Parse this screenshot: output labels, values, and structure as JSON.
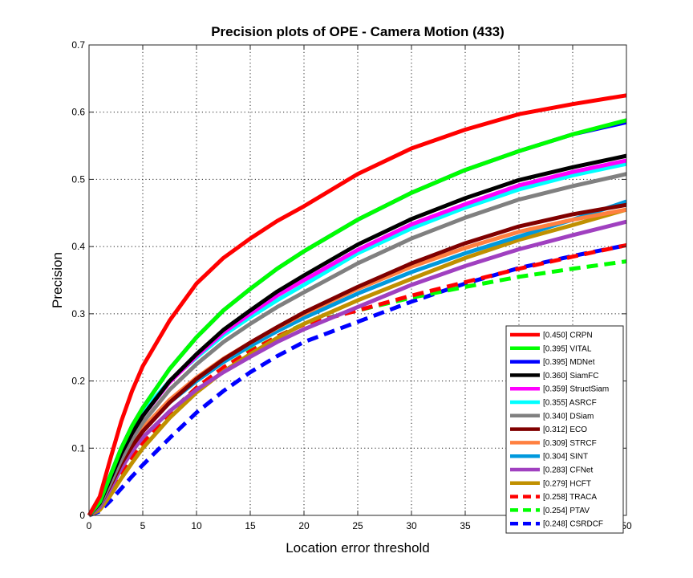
{
  "chart_data": {
    "type": "line",
    "title": "Precision plots of OPE - Camera Motion (433)",
    "xlabel": "Location error threshold",
    "ylabel": "Precision",
    "xlim": [
      0,
      50
    ],
    "ylim": [
      0,
      0.7
    ],
    "xticks": [
      "0",
      "5",
      "10",
      "15",
      "20",
      "25",
      "30",
      "35",
      "40",
      "45",
      "50"
    ],
    "yticks": [
      "0",
      "0.1",
      "0.2",
      "0.3",
      "0.4",
      "0.5",
      "0.6",
      "0.7"
    ],
    "grid": true,
    "legend_position": "bottom-right",
    "x": [
      0,
      1,
      2,
      3,
      4,
      5,
      7.5,
      10,
      12.5,
      15,
      17.5,
      20,
      25,
      30,
      35,
      40,
      45,
      50
    ],
    "series": [
      {
        "name": "[0.450] CRPN",
        "color": "#ff0000",
        "dash": false,
        "values": [
          0.0,
          0.028,
          0.085,
          0.14,
          0.185,
          0.222,
          0.29,
          0.345,
          0.383,
          0.412,
          0.438,
          0.46,
          0.508,
          0.546,
          0.574,
          0.597,
          0.612,
          0.625
        ]
      },
      {
        "name": "[0.395] VITAL",
        "color": "#00ff00",
        "dash": false,
        "values": [
          0.0,
          0.02,
          0.06,
          0.1,
          0.133,
          0.16,
          0.218,
          0.265,
          0.305,
          0.337,
          0.367,
          0.393,
          0.44,
          0.48,
          0.514,
          0.542,
          0.567,
          0.588
        ]
      },
      {
        "name": "[0.395] MDNet",
        "color": "#0000ff",
        "dash": false,
        "values": [
          0.0,
          0.02,
          0.06,
          0.1,
          0.133,
          0.16,
          0.218,
          0.265,
          0.305,
          0.337,
          0.367,
          0.393,
          0.44,
          0.48,
          0.514,
          0.542,
          0.567,
          0.585
        ]
      },
      {
        "name": "[0.360] SiamFC",
        "color": "#000000",
        "dash": false,
        "values": [
          0.0,
          0.018,
          0.055,
          0.092,
          0.122,
          0.148,
          0.2,
          0.24,
          0.276,
          0.305,
          0.333,
          0.357,
          0.403,
          0.441,
          0.472,
          0.499,
          0.518,
          0.535
        ]
      },
      {
        "name": "[0.359] StructSiam",
        "color": "#ff00ff",
        "dash": false,
        "values": [
          0.0,
          0.018,
          0.055,
          0.092,
          0.122,
          0.148,
          0.198,
          0.237,
          0.272,
          0.3,
          0.327,
          0.35,
          0.395,
          0.433,
          0.463,
          0.491,
          0.511,
          0.528
        ]
      },
      {
        "name": "[0.355] ASRCF",
        "color": "#00ffff",
        "dash": false,
        "values": [
          0.0,
          0.02,
          0.06,
          0.1,
          0.13,
          0.155,
          0.2,
          0.235,
          0.268,
          0.295,
          0.32,
          0.343,
          0.39,
          0.427,
          0.458,
          0.485,
          0.506,
          0.523
        ]
      },
      {
        "name": "[0.340] DSiam",
        "color": "#808080",
        "dash": false,
        "values": [
          0.0,
          0.015,
          0.048,
          0.083,
          0.113,
          0.138,
          0.187,
          0.225,
          0.258,
          0.285,
          0.31,
          0.332,
          0.375,
          0.412,
          0.443,
          0.47,
          0.49,
          0.508
        ]
      },
      {
        "name": "[0.312] ECO",
        "color": "#800000",
        "dash": false,
        "values": [
          0.0,
          0.015,
          0.045,
          0.077,
          0.103,
          0.125,
          0.168,
          0.203,
          0.232,
          0.257,
          0.28,
          0.302,
          0.34,
          0.375,
          0.405,
          0.43,
          0.448,
          0.462
        ]
      },
      {
        "name": "[0.309] STRCF",
        "color": "#ff8040",
        "dash": false,
        "values": [
          0.0,
          0.016,
          0.048,
          0.08,
          0.108,
          0.13,
          0.172,
          0.205,
          0.233,
          0.257,
          0.279,
          0.3,
          0.337,
          0.37,
          0.398,
          0.422,
          0.44,
          0.455
        ]
      },
      {
        "name": "[0.304] SINT",
        "color": "#0099dd",
        "dash": false,
        "values": [
          0.0,
          0.016,
          0.048,
          0.08,
          0.106,
          0.127,
          0.168,
          0.2,
          0.228,
          0.252,
          0.274,
          0.294,
          0.33,
          0.362,
          0.39,
          0.415,
          0.44,
          0.467
        ]
      },
      {
        "name": "[0.283] CFNet",
        "color": "#a040c0",
        "dash": false,
        "values": [
          0.0,
          0.012,
          0.04,
          0.07,
          0.095,
          0.116,
          0.155,
          0.187,
          0.213,
          0.236,
          0.258,
          0.277,
          0.31,
          0.343,
          0.371,
          0.396,
          0.417,
          0.437
        ]
      },
      {
        "name": "[0.279] HCFT",
        "color": "#c09000",
        "dash": false,
        "values": [
          0.0,
          0.008,
          0.03,
          0.055,
          0.078,
          0.1,
          0.145,
          0.183,
          0.214,
          0.24,
          0.264,
          0.285,
          0.32,
          0.352,
          0.383,
          0.41,
          0.432,
          0.455
        ]
      },
      {
        "name": "[0.258] TRACA",
        "color": "#ff0000",
        "dash": true,
        "values": [
          0.0,
          0.01,
          0.035,
          0.062,
          0.085,
          0.107,
          0.152,
          0.19,
          0.22,
          0.244,
          0.266,
          0.284,
          0.305,
          0.327,
          0.347,
          0.367,
          0.385,
          0.402
        ]
      },
      {
        "name": "[0.254] PTAV",
        "color": "#00ff00",
        "dash": true,
        "values": [
          0.0,
          0.01,
          0.035,
          0.062,
          0.085,
          0.107,
          0.153,
          0.19,
          0.22,
          0.245,
          0.266,
          0.285,
          0.305,
          0.324,
          0.34,
          0.355,
          0.367,
          0.378
        ]
      },
      {
        "name": "[0.248] CSRDCF",
        "color": "#0000ff",
        "dash": true,
        "values": [
          0.0,
          0.006,
          0.022,
          0.04,
          0.058,
          0.075,
          0.115,
          0.153,
          0.185,
          0.213,
          0.237,
          0.258,
          0.288,
          0.318,
          0.345,
          0.368,
          0.386,
          0.402
        ]
      }
    ]
  }
}
